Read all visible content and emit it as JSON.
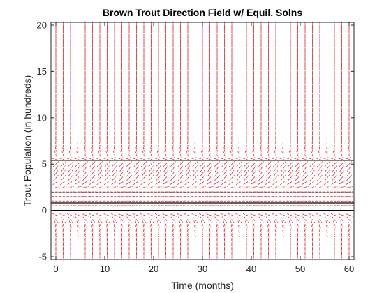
{
  "colors": {
    "background": "#ffffff",
    "axes": "#262626",
    "field": "#e0262b",
    "equilibrium": "#000000"
  },
  "chart_data": {
    "type": "direction-field",
    "title": "Brown Trout Direction Field w/ Equil. Solns",
    "xlabel": "Time (months)",
    "ylabel": "Trout Population (in hundreds)",
    "xlim": [
      -1,
      61
    ],
    "ylim": [
      -5.3,
      20.3
    ],
    "xticks": [
      0,
      10,
      20,
      30,
      40,
      50,
      60
    ],
    "yticks": [
      -5,
      0,
      5,
      10,
      15,
      20
    ],
    "grid": false,
    "box": true,
    "field": {
      "x_step": 1.5,
      "y_step": 0.5,
      "x_range": [
        0,
        60
      ],
      "y_range": [
        -5,
        20
      ],
      "line_style": "dashed"
    },
    "equilibria": [
      0,
      0.8,
      1.9,
      5.4
    ]
  }
}
